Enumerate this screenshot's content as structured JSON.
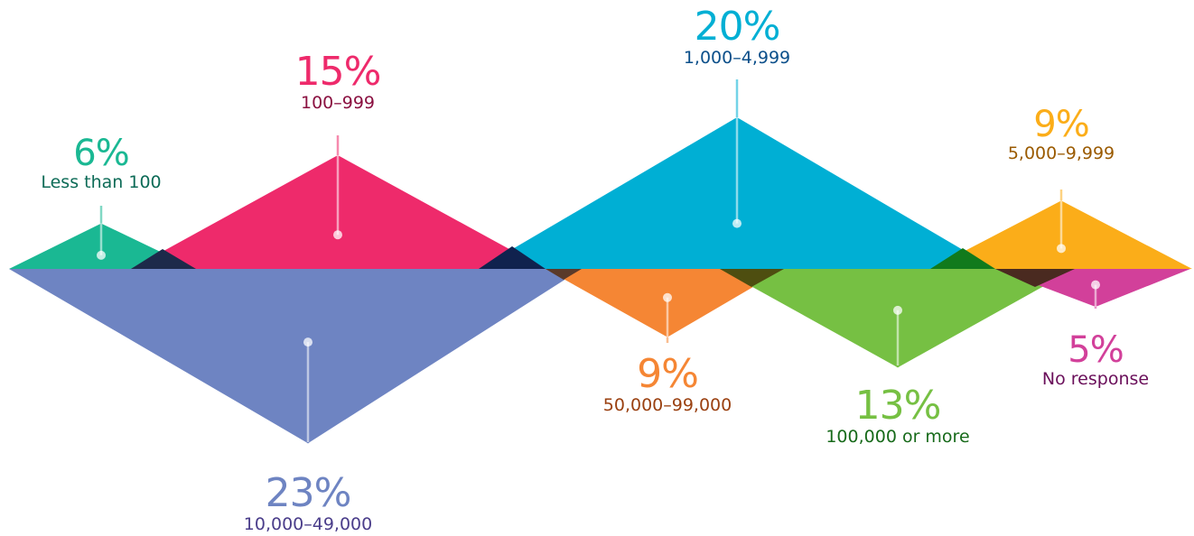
{
  "chart_data": {
    "type": "area",
    "title": "",
    "xlabel": "",
    "ylabel": "",
    "categories": [
      "Less than 100",
      "100–999",
      "1,000–4,999",
      "5,000–9,999",
      "10,000–49,000",
      "50,000–99,000",
      "100,000 or more",
      "No response"
    ],
    "values": [
      6,
      15,
      20,
      9,
      23,
      9,
      13,
      5
    ],
    "unit": "%",
    "series": [
      {
        "label": "6%",
        "category": "Less than 100",
        "value": 6,
        "side": "above",
        "color": "#1ab893",
        "text_color": "#0d6b57"
      },
      {
        "label": "15%",
        "category": "100–999",
        "value": 15,
        "side": "above",
        "color": "#ee2a6b",
        "text_color": "#8a1040"
      },
      {
        "label": "20%",
        "category": "1,000–4,999",
        "value": 20,
        "side": "above",
        "color": "#00afd4",
        "text_color": "#0b4f8a"
      },
      {
        "label": "9%",
        "category": "5,000–9,999",
        "value": 9,
        "side": "above",
        "color": "#fbad19",
        "text_color": "#9a5a00"
      },
      {
        "label": "23%",
        "category": "10,000–49,000",
        "value": 23,
        "side": "below",
        "color": "#6e84c2",
        "text_color": "#4a3d8a"
      },
      {
        "label": "9%",
        "category": "50,000–99,000",
        "value": 9,
        "side": "below",
        "color": "#f58634",
        "text_color": "#9a4010"
      },
      {
        "label": "13%",
        "category": "100,000 or more",
        "value": 13,
        "side": "below",
        "color": "#76c043",
        "text_color": "#176a1a"
      },
      {
        "label": "5%",
        "category": "No response",
        "value": 5,
        "side": "below",
        "color": "#d2409a",
        "text_color": "#6a0f5a"
      }
    ]
  }
}
